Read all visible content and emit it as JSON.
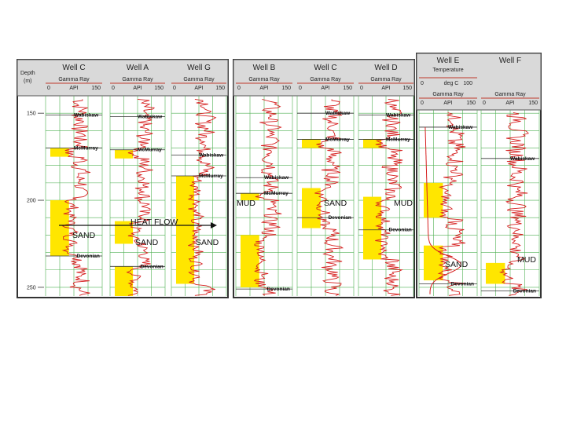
{
  "depth_axis": {
    "title": "Depth",
    "unit": "(m)",
    "ticks": [
      "150",
      "200",
      "250"
    ],
    "min": 140,
    "max": 255
  },
  "gamma_scale": {
    "title": "Gamma Ray",
    "min": "0",
    "unit": "API",
    "max": "150"
  },
  "temperature_scale": {
    "title": "Temperature",
    "min": "0",
    "unit": "deg C",
    "max": "100"
  },
  "wells": [
    {
      "name": "Well C",
      "panel": 0,
      "tops": [
        {
          "label": "Wabiskaw",
          "depth": 151
        },
        {
          "label": "McMurray",
          "depth": 170
        },
        {
          "label": "Devonian",
          "depth": 232
        }
      ],
      "sand": [
        {
          "from": 170,
          "to": 175
        },
        {
          "from": 200,
          "to": 232
        }
      ]
    },
    {
      "name": "Well A",
      "panel": 0,
      "tops": [
        {
          "label": "Wabiskaw",
          "depth": 152
        },
        {
          "label": "McMurray",
          "depth": 171
        },
        {
          "label": "Devonian",
          "depth": 238
        }
      ],
      "sand": [
        {
          "from": 171,
          "to": 176
        },
        {
          "from": 212,
          "to": 225
        },
        {
          "from": 238,
          "to": 255
        }
      ]
    },
    {
      "name": "Well G",
      "panel": 0,
      "tops": [
        {
          "label": "Wabiskaw",
          "depth": 174
        },
        {
          "label": "McMurray",
          "depth": 186
        }
      ],
      "sand": [
        {
          "from": 186,
          "to": 248
        }
      ]
    },
    {
      "name": "Well B",
      "panel": 1,
      "tops": [
        {
          "label": "Wabiskaw",
          "depth": 187
        },
        {
          "label": "McMurray",
          "depth": 196
        },
        {
          "label": "Devonian",
          "depth": 251
        }
      ],
      "sand": [
        {
          "from": 196,
          "to": 200
        },
        {
          "from": 220,
          "to": 250
        }
      ]
    },
    {
      "name": "Well C",
      "panel": 1,
      "tops": [
        {
          "label": "Wabiskaw",
          "depth": 150
        },
        {
          "label": "McMurray",
          "depth": 165
        },
        {
          "label": "Devonian",
          "depth": 210
        }
      ],
      "sand": [
        {
          "from": 165,
          "to": 170
        },
        {
          "from": 193,
          "to": 216
        }
      ]
    },
    {
      "name": "Well D",
      "panel": 1,
      "tops": [
        {
          "label": "Wabiskaw",
          "depth": 151
        },
        {
          "label": "McMurray",
          "depth": 165
        },
        {
          "label": "Devonian",
          "depth": 217
        }
      ],
      "sand": [
        {
          "from": 165,
          "to": 170
        },
        {
          "from": 198,
          "to": 234
        }
      ]
    },
    {
      "name": "Well E",
      "panel": 2,
      "tops": [
        {
          "label": "Wabiskaw",
          "depth": 158
        },
        {
          "label": "Devonian",
          "depth": 248
        }
      ],
      "sand": [
        {
          "from": 190,
          "to": 210
        },
        {
          "from": 226,
          "to": 246
        }
      ]
    },
    {
      "name": "Well F",
      "panel": 2,
      "tops": [
        {
          "label": "Wabiskaw",
          "depth": 176
        },
        {
          "label": "MUD",
          "depth": 235
        },
        {
          "label": "Devonian",
          "depth": 252
        }
      ],
      "sand": [
        {
          "from": 236,
          "to": 248
        }
      ]
    }
  ],
  "annotations": {
    "heat_flow": "HEAT FLOW",
    "sand": "SAND",
    "mud": "MUD"
  }
}
